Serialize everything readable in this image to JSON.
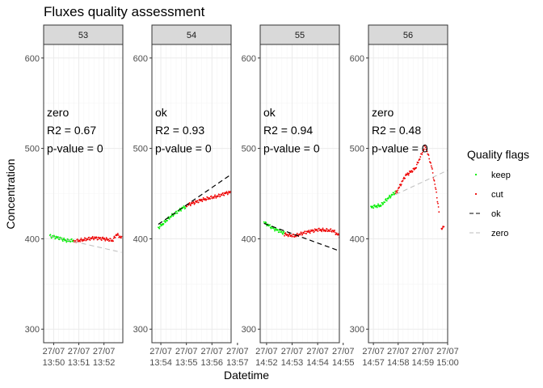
{
  "chart_data": {
    "type": "scatter",
    "title": "Fluxes quality assessment",
    "xlabel": "Datetime",
    "ylabel": "Concentration",
    "ylim": [
      285,
      615
    ],
    "yticks": [
      300,
      400,
      500,
      600
    ],
    "legend": {
      "title": "Quality flags",
      "placement": "right",
      "entries": [
        {
          "label": "keep",
          "kind": "point",
          "color": "#00ee00"
        },
        {
          "label": "cut",
          "kind": "point",
          "color": "#ee0000"
        },
        {
          "label": "ok",
          "kind": "line",
          "dash": "dashed",
          "color": "#000000"
        },
        {
          "label": "zero",
          "kind": "line",
          "dash": "dashed",
          "color": "#bebebe"
        }
      ]
    },
    "colors": {
      "keep": "#00ee00",
      "cut": "#ee0000",
      "ok": "#000000",
      "zero": "#bebebe",
      "strip_fill": "#d9d9d9",
      "grid_major": "#ebebeb",
      "grid_minor": "#f5f5f5"
    },
    "panels": [
      {
        "strip": "53",
        "annotation": [
          "zero",
          "R2 = 0.67",
          "p-value = 0"
        ],
        "fit_type": "zero",
        "xlim": [
          -0.4,
          2.75
        ],
        "xticks": [
          {
            "v": 0,
            "l1": "27/07",
            "l2": "13:50"
          },
          {
            "v": 1,
            "l1": "27/07",
            "l2": "13:51"
          },
          {
            "v": 2,
            "l1": "27/07",
            "l2": "13:52"
          }
        ],
        "fit": [
          [
            -0.15,
            403
          ],
          [
            2.7,
            385
          ]
        ],
        "segments": [
          {
            "flag": "keep",
            "start": -0.15,
            "end": 0.8,
            "knots": [
              [
                -0.15,
                403
              ],
              [
                0.2,
                401
              ],
              [
                0.5,
                398
              ],
              [
                0.8,
                398
              ]
            ]
          },
          {
            "flag": "cut",
            "start": 0.8,
            "end": 2.7,
            "knots": [
              [
                0.8,
                397
              ],
              [
                1.2,
                399
              ],
              [
                1.6,
                401
              ],
              [
                2.0,
                400
              ],
              [
                2.35,
                398
              ],
              [
                2.5,
                405
              ],
              [
                2.7,
                401
              ]
            ]
          }
        ]
      },
      {
        "strip": "54",
        "annotation": [
          "ok",
          "R2 = 0.93",
          "p-value = 0"
        ],
        "fit_type": "ok",
        "xlim": [
          -0.35,
          2.75
        ],
        "xticks": [
          {
            "v": 0,
            "l1": "27/07",
            "l2": "13:54"
          },
          {
            "v": 1,
            "l1": "27/07",
            "l2": "13:55"
          },
          {
            "v": 2,
            "l1": "27/07",
            "l2": "13:56"
          },
          {
            "v": 3,
            "l1": "27/07",
            "l2": "13:57"
          }
        ],
        "fit": [
          [
            -0.1,
            416
          ],
          [
            3.05,
            477
          ]
        ],
        "segments": [
          {
            "flag": "keep",
            "start": -0.1,
            "end": 1.0,
            "knots": [
              [
                -0.1,
                412
              ],
              [
                0.4,
                425
              ],
              [
                0.9,
                435
              ]
            ]
          },
          {
            "flag": "cut",
            "start": 1.0,
            "end": 2.95,
            "knots": [
              [
                1.0,
                437
              ],
              [
                1.6,
                443
              ],
              [
                2.2,
                447
              ],
              [
                2.6,
                451
              ],
              [
                2.95,
                452
              ]
            ]
          }
        ]
      },
      {
        "strip": "55",
        "annotation": [
          "ok",
          "R2 = 0.94",
          "p-value = 0"
        ],
        "fit_type": "ok",
        "xlim": [
          -0.25,
          2.85
        ],
        "xticks": [
          {
            "v": 0,
            "l1": "27/07",
            "l2": "14:52"
          },
          {
            "v": 1,
            "l1": "27/07",
            "l2": "14:53"
          },
          {
            "v": 2,
            "l1": "27/07",
            "l2": "14:54"
          },
          {
            "v": 3,
            "l1": "27/07",
            "l2": "14:55"
          }
        ],
        "fit": [
          [
            -0.1,
            417
          ],
          [
            3.1,
            384
          ]
        ],
        "segments": [
          {
            "flag": "keep",
            "start": -0.1,
            "end": 0.7,
            "knots": [
              [
                -0.1,
                418
              ],
              [
                0.3,
                411
              ],
              [
                0.7,
                406
              ]
            ]
          },
          {
            "flag": "cut",
            "start": 0.7,
            "end": 3.1,
            "knots": [
              [
                0.7,
                405
              ],
              [
                1.1,
                403
              ],
              [
                1.5,
                407
              ],
              [
                2.0,
                410
              ],
              [
                2.6,
                409
              ],
              [
                2.85,
                403
              ],
              [
                3.1,
                402
              ]
            ]
          }
        ]
      },
      {
        "strip": "56",
        "annotation": [
          "zero",
          "R2 = 0.48",
          "p-value = 0"
        ],
        "fit_type": "zero",
        "xlim": [
          -0.2,
          3.0
        ],
        "xticks": [
          {
            "v": 0,
            "l1": "27/07",
            "l2": "14:57"
          },
          {
            "v": 1,
            "l1": "27/07",
            "l2": "14:58"
          },
          {
            "v": 2,
            "l1": "27/07",
            "l2": "14:59"
          },
          {
            "v": 3,
            "l1": "27/07",
            "l2": "15:00"
          }
        ],
        "fit": [
          [
            0.9,
            449
          ],
          [
            3.1,
            477
          ]
        ],
        "segments": [
          {
            "flag": "keep",
            "start": -0.1,
            "end": 0.9,
            "knots": [
              [
                -0.1,
                435
              ],
              [
                0.3,
                437
              ],
              [
                0.6,
                445
              ],
              [
                0.9,
                452
              ]
            ]
          },
          {
            "flag": "cut",
            "start": 0.9,
            "end": 2.65,
            "knots": [
              [
                0.9,
                450
              ],
              [
                1.3,
                470
              ],
              [
                1.7,
                478
              ],
              [
                2.0,
                497
              ],
              [
                2.1,
                503
              ],
              [
                2.35,
                480
              ],
              [
                2.55,
                450
              ],
              [
                2.65,
                430
              ]
            ]
          },
          {
            "flag": "cut",
            "start": 2.75,
            "end": 2.85,
            "knots": [
              [
                2.75,
                410
              ],
              [
                2.85,
                415
              ]
            ]
          }
        ]
      }
    ]
  }
}
